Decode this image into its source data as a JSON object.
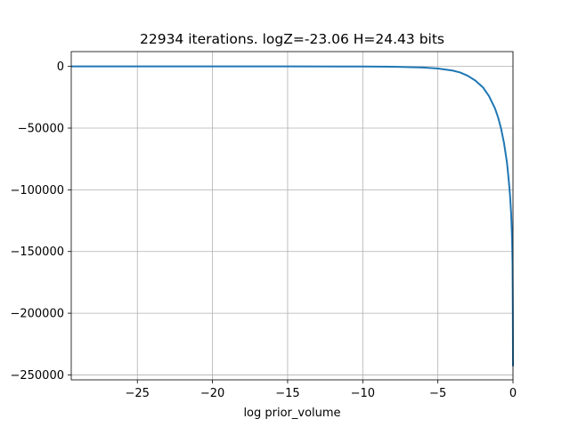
{
  "chart_data": {
    "type": "line",
    "title": "22934 iterations. logZ=-23.06 H=24.43 bits",
    "xlabel": "log prior_volume",
    "ylabel": "",
    "xlim": [
      -29.4,
      0
    ],
    "ylim": [
      -254000,
      12000
    ],
    "xticks": [
      -25,
      -20,
      -15,
      -10,
      -5,
      0
    ],
    "yticks": [
      0,
      -50000,
      -100000,
      -150000,
      -200000,
      -250000
    ],
    "xtick_labels": [
      "−25",
      "−20",
      "−15",
      "−10",
      "−5",
      "0"
    ],
    "ytick_labels": [
      "0",
      "−50000",
      "−100000",
      "−150000",
      "−200000",
      "−250000"
    ],
    "grid": true,
    "series": [
      {
        "color": "#1f77b4",
        "x": [
          -29.4,
          -25,
          -20,
          -15,
          -10,
          -8,
          -6,
          -5,
          -4,
          -3.5,
          -3,
          -2.5,
          -2,
          -1.6,
          -1.2,
          -1.0,
          -0.8,
          -0.6,
          -0.4,
          -0.3,
          -0.2,
          -0.12,
          -0.06,
          -0.03,
          -0.01,
          0
        ],
        "y": [
          0,
          0,
          0,
          0,
          -100,
          -300,
          -900,
          -1700,
          -3400,
          -5000,
          -7700,
          -11500,
          -17000,
          -24000,
          -34000,
          -41000,
          -50000,
          -62000,
          -78000,
          -90000,
          -104000,
          -120000,
          -140000,
          -160000,
          -200000,
          -243000
        ]
      }
    ]
  }
}
